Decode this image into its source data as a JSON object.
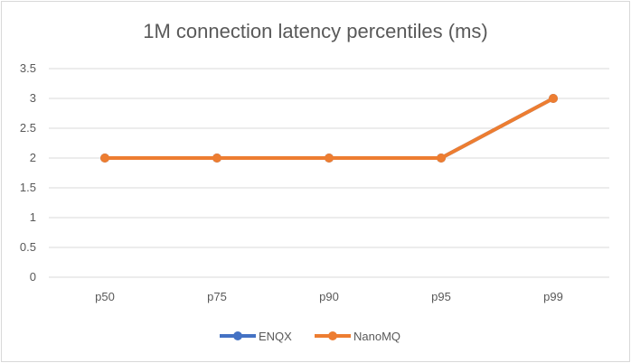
{
  "chart_data": {
    "type": "line",
    "title": "1M connection latency percentiles (ms)",
    "categories": [
      "p50",
      "p75",
      "p90",
      "p95",
      "p99"
    ],
    "series": [
      {
        "name": "ENQX",
        "values": [
          2,
          2,
          2,
          2,
          3
        ],
        "color": "#4472c4"
      },
      {
        "name": "NanoMQ",
        "values": [
          2,
          2,
          2,
          2,
          3
        ],
        "color": "#ed7d31"
      }
    ],
    "ylim": [
      0,
      3.5
    ],
    "yticks": [
      "0",
      "0.5",
      "1",
      "1.5",
      "2",
      "2.5",
      "3",
      "3.5"
    ],
    "grid": true,
    "legend": "bottom"
  }
}
